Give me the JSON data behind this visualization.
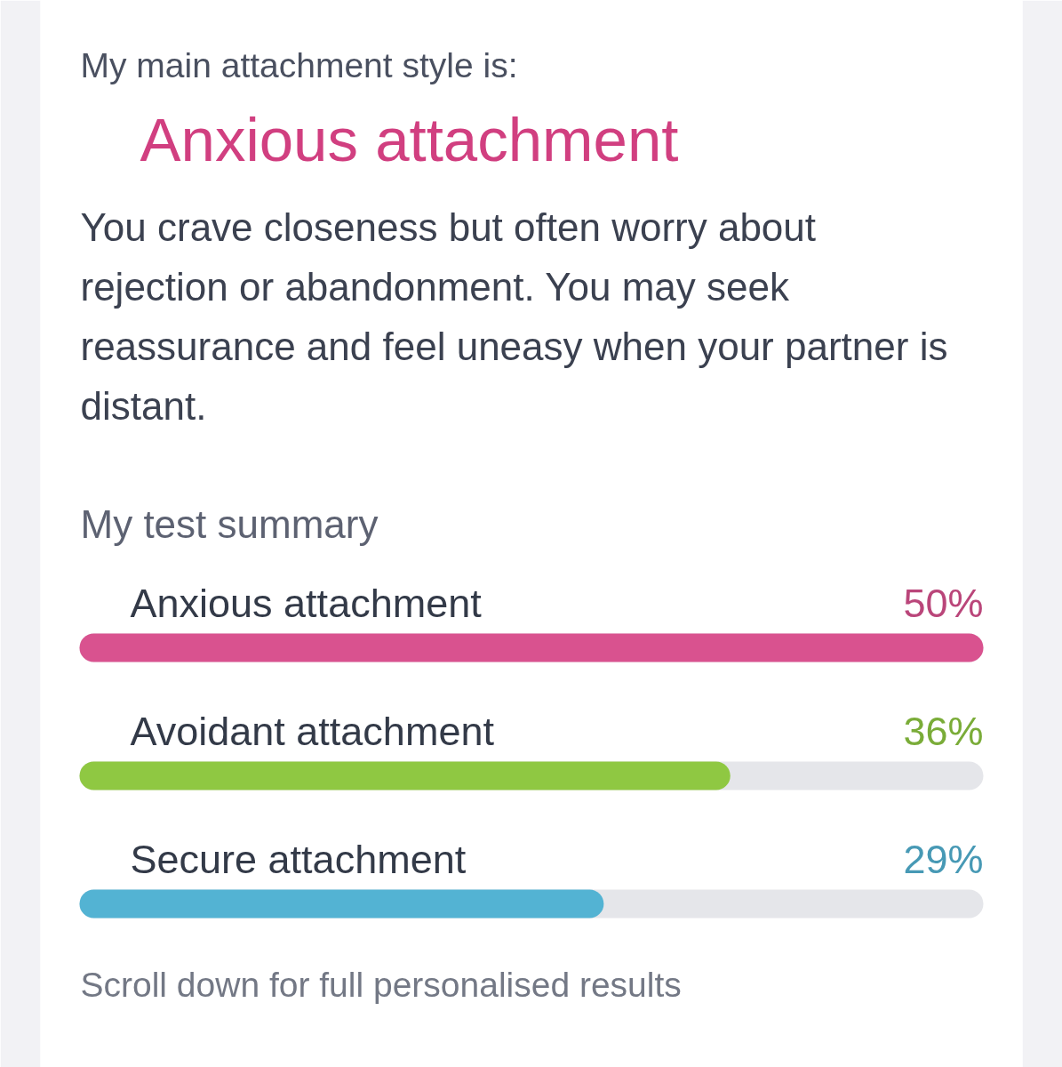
{
  "chart_data": {
    "type": "bar",
    "orientation": "horizontal",
    "title": "My test summary",
    "categories": [
      "Anxious attachment",
      "Avoidant attachment",
      "Secure attachment"
    ],
    "values": [
      50,
      36,
      29
    ],
    "value_labels": [
      "50%",
      "36%",
      "29%"
    ],
    "colors": [
      "#d9528f",
      "#8fc842",
      "#53b3d3"
    ],
    "xlim": [
      0,
      50
    ],
    "annotations": [
      "My main attachment style is:",
      "Anxious attachment",
      "You crave closeness but often worry about rejection or abandonment. You may seek reassurance and feel uneasy when your partner is distant.",
      "Scroll down for full personalised results"
    ]
  }
}
